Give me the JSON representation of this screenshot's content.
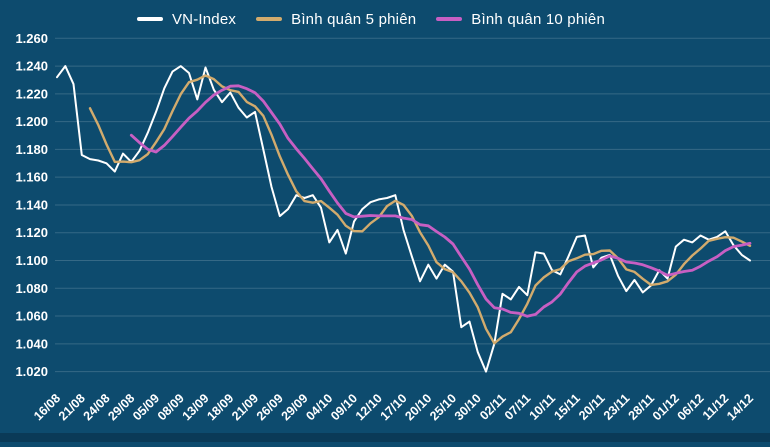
{
  "legend": [
    {
      "label": "VN-Index",
      "color": "#ffffff"
    },
    {
      "label": "Bình quân 5 phiên",
      "color": "#d2ab6d"
    },
    {
      "label": "Bình quân 10 phiên",
      "color": "#c75fc3"
    }
  ],
  "colors": {
    "background": "#0d4b6e",
    "bottom_bar": "#0a3a57",
    "gridline": "rgba(255,255,255,0.17)",
    "axis_text": "#ffffff"
  },
  "chart_data": {
    "type": "line",
    "title": "",
    "xlabel": "",
    "ylabel": "",
    "grid": "horizontal",
    "legend_position": "top-center",
    "y_tick_labels": [
      "1.260",
      "1.240",
      "1.220",
      "1.200",
      "1.180",
      "1.160",
      "1.140",
      "1.120",
      "1.100",
      "1.080",
      "1.060",
      "1.040",
      "1.020"
    ],
    "y_tick_values": [
      1260,
      1240,
      1220,
      1200,
      1180,
      1160,
      1140,
      1120,
      1100,
      1080,
      1060,
      1040,
      1020
    ],
    "ylim": [
      1020,
      1260
    ],
    "x_tick_labels": [
      "16/08",
      "21/08",
      "24/08",
      "29/08",
      "05/09",
      "08/09",
      "13/09",
      "18/09",
      "21/09",
      "26/09",
      "29/09",
      "04/10",
      "09/10",
      "12/10",
      "17/10",
      "20/10",
      "25/10",
      "30/10",
      "02/11",
      "07/11",
      "10/11",
      "15/11",
      "20/11",
      "23/11",
      "28/11",
      "01/12",
      "06/12",
      "11/12",
      "14/12"
    ],
    "points_per_x_tick": 3,
    "series": [
      {
        "name": "VN-Index",
        "color": "#ffffff",
        "width": 2,
        "kind": "raw",
        "values": [
          1232,
          1240,
          1227,
          1176,
          1173,
          1172,
          1170,
          1164,
          1177,
          1171,
          1179,
          1192,
          1207,
          1224,
          1236,
          1240,
          1235,
          1216,
          1239,
          1223,
          1214,
          1221,
          1210,
          1203,
          1207,
          1180,
          1153,
          1132,
          1137,
          1147,
          1145,
          1147,
          1138,
          1113,
          1122,
          1105,
          1128,
          1137,
          1142,
          1144,
          1145,
          1147,
          1122,
          1103,
          1085,
          1097,
          1087,
          1097,
          1092,
          1052,
          1056,
          1034,
          1020,
          1040,
          1076,
          1072,
          1081,
          1075,
          1106,
          1105,
          1093,
          1090,
          1103,
          1117,
          1118,
          1095,
          1102,
          1104,
          1089,
          1078,
          1086,
          1077,
          1082,
          1093,
          1087,
          1110,
          1115,
          1113,
          1118,
          1115,
          1117,
          1121,
          1111,
          1104,
          1100
        ]
      },
      {
        "name": "Bình quân 5 phiên",
        "color": "#d2ab6d",
        "width": 2.4,
        "kind": "moving_average",
        "window": 5,
        "source": "VN-Index"
      },
      {
        "name": "Bình quân 10 phiên",
        "color": "#c75fc3",
        "width": 2.8,
        "kind": "moving_average",
        "window": 10,
        "source": "VN-Index"
      }
    ]
  }
}
